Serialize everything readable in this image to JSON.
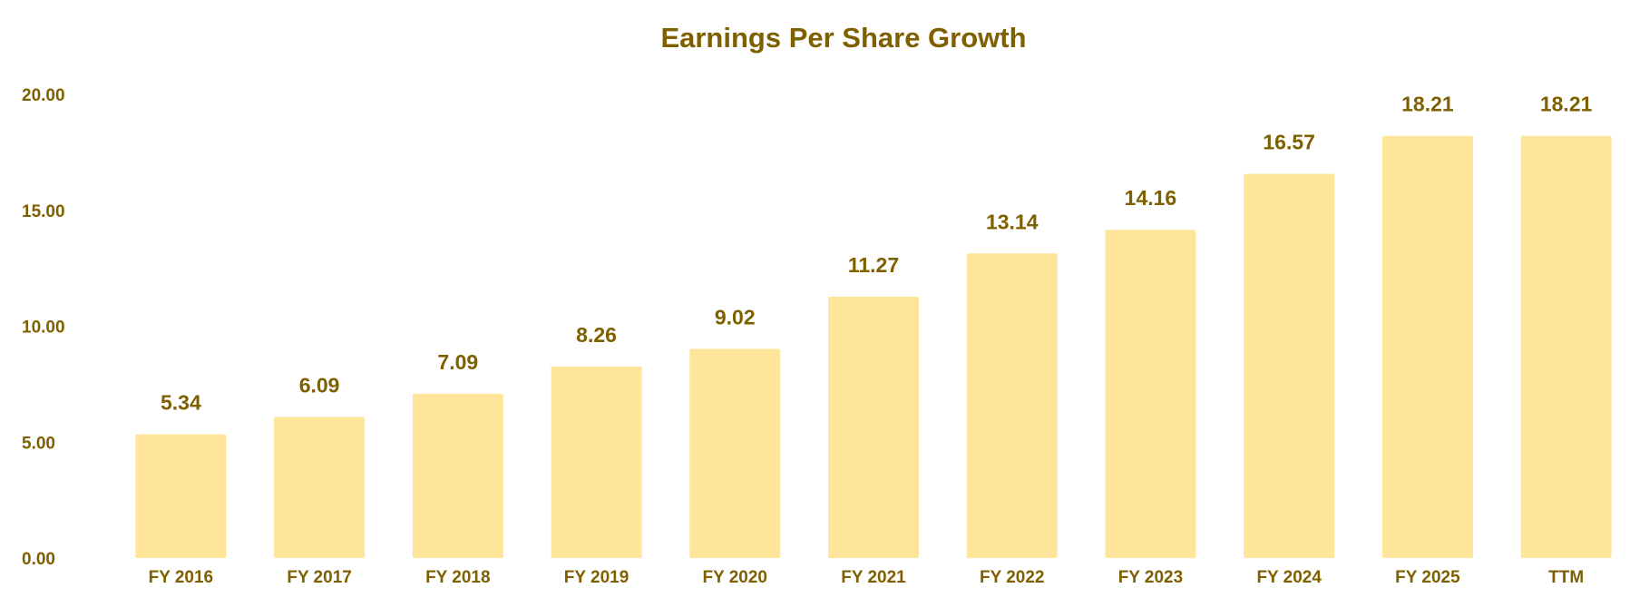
{
  "chart_data": {
    "type": "bar",
    "title": "Earnings Per Share Growth",
    "xlabel": "",
    "ylabel": "",
    "categories": [
      "FY 2016",
      "FY 2017",
      "FY 2018",
      "FY 2019",
      "FY 2020",
      "FY 2021",
      "FY 2022",
      "FY 2023",
      "FY 2024",
      "FY 2025",
      "TTM"
    ],
    "values": [
      5.34,
      6.09,
      7.09,
      8.26,
      9.02,
      11.27,
      13.14,
      14.16,
      16.57,
      18.21,
      18.21
    ],
    "value_labels": [
      "5.34",
      "6.09",
      "7.09",
      "8.26",
      "9.02",
      "11.27",
      "13.14",
      "14.16",
      "16.57",
      "18.21",
      "18.21"
    ],
    "ylim": [
      0,
      20
    ],
    "yticks": [
      0,
      5,
      10,
      15,
      20
    ],
    "ytick_labels": [
      "0.00",
      "5.00",
      "10.00",
      "15.00",
      "20.00"
    ],
    "grid": false,
    "legend": "none",
    "colors": {
      "bar": "#FEE599",
      "text": "#7F6000"
    }
  }
}
